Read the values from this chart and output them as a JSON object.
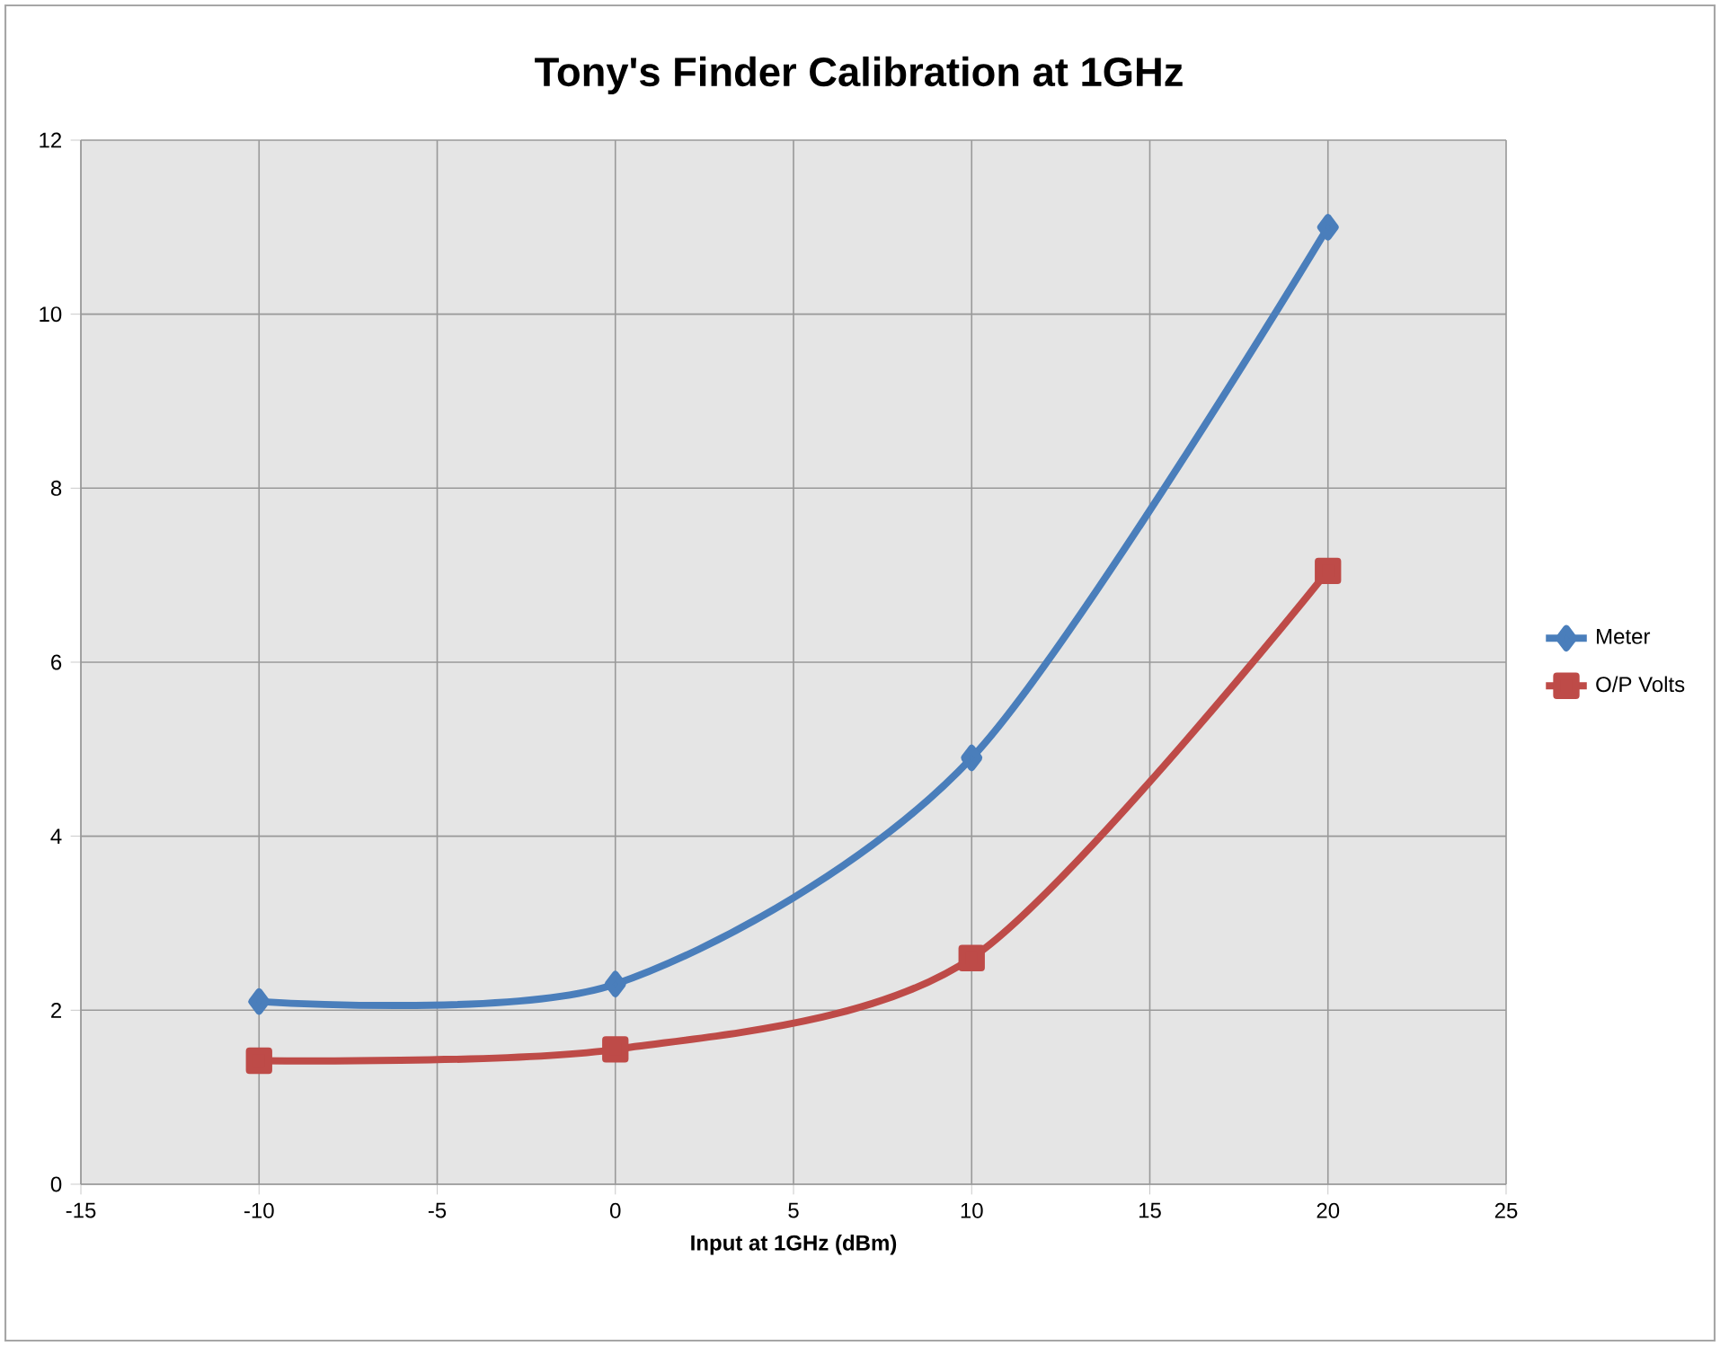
{
  "chart_data": {
    "type": "line",
    "title": "Tony's Finder Calibration at 1GHz",
    "xlabel": "Input at 1GHz (dBm)",
    "x": [
      -10,
      0,
      10,
      20
    ],
    "series": [
      {
        "name": "Meter",
        "color": "#4a7ebb",
        "values": [
          2.1,
          2.3,
          4.9,
          11
        ],
        "marker": "diamond"
      },
      {
        "name": "O/P Volts",
        "color": "#be4b48",
        "values": [
          1.42,
          1.55,
          2.6,
          7.05
        ],
        "marker": "square"
      }
    ],
    "xlim": [
      -15,
      25
    ],
    "xticks": [
      -15,
      -10,
      -5,
      0,
      5,
      10,
      15,
      20,
      25
    ],
    "ylim": [
      0,
      12
    ],
    "yticks": [
      0,
      2,
      4,
      6,
      8,
      10,
      12
    ],
    "grid": true,
    "legend": "right",
    "line_style": "solid"
  }
}
